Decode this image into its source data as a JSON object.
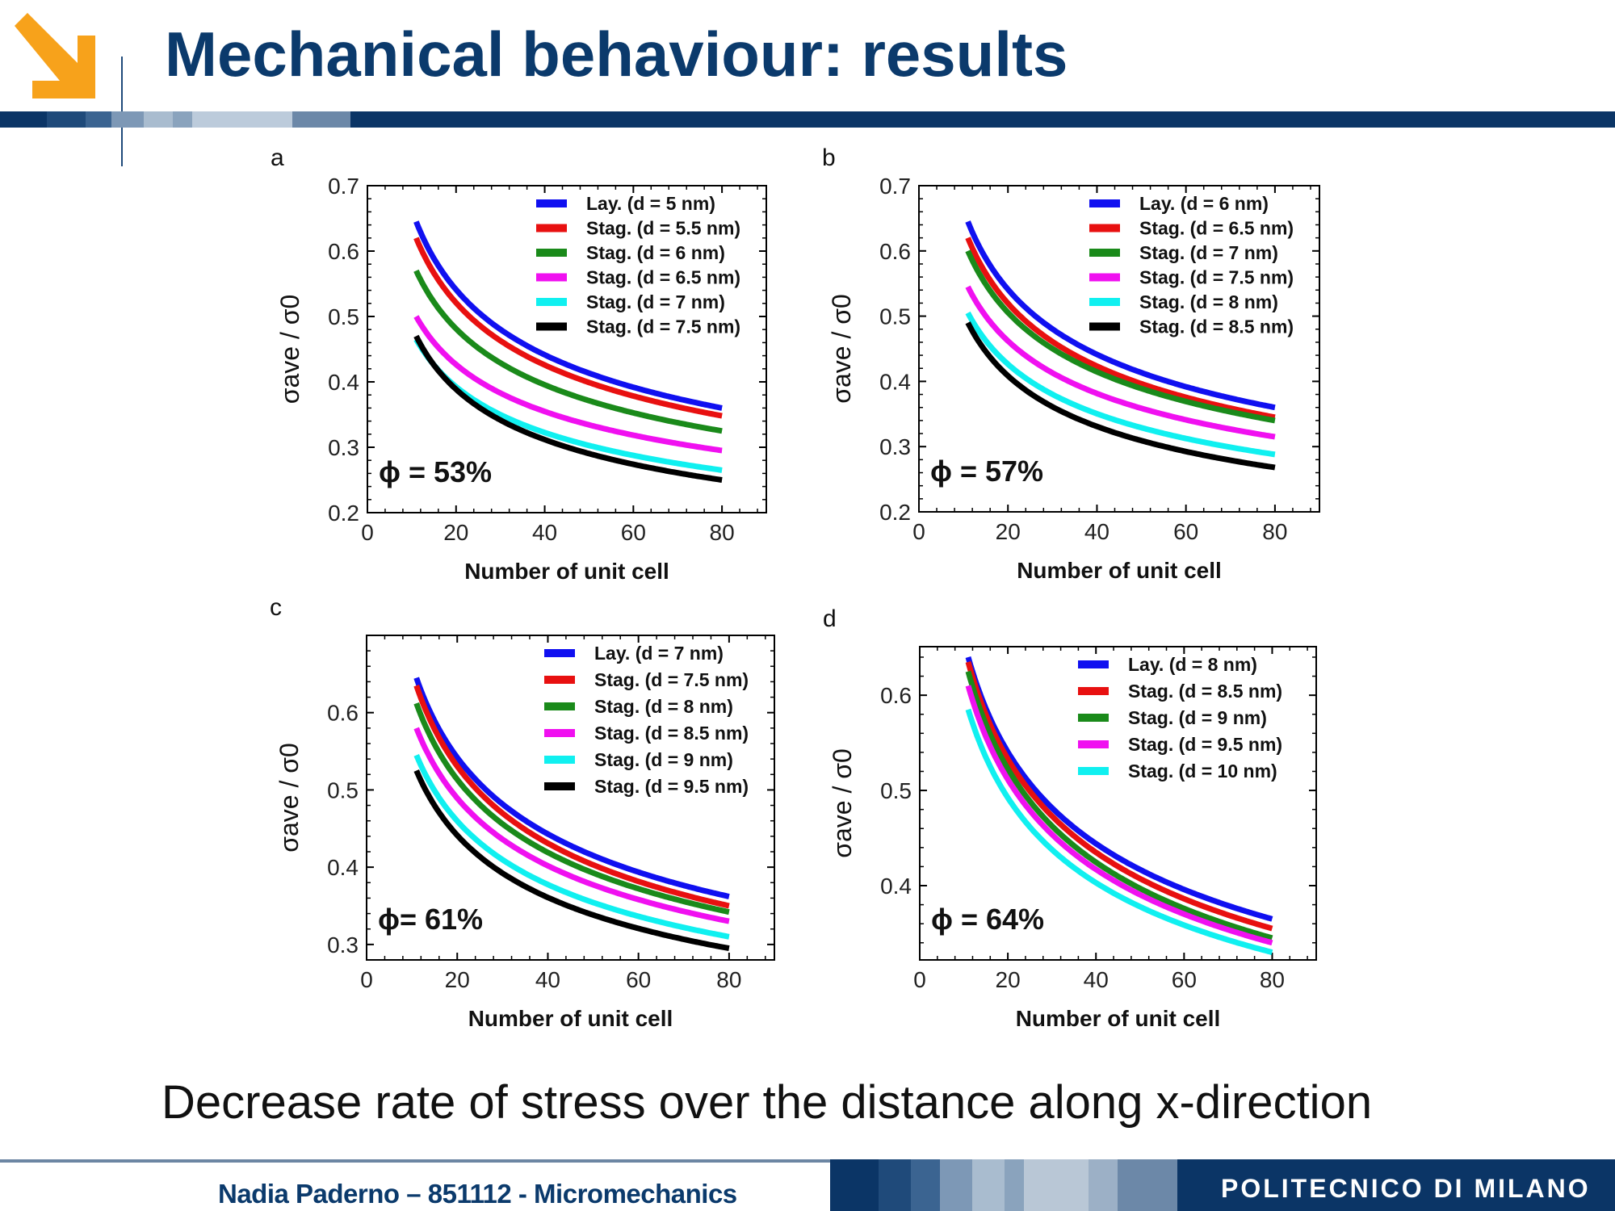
{
  "header": {
    "title": "Mechanical behaviour: results"
  },
  "subtitle": "Decrease rate of stress over the distance along x-direction",
  "footer": {
    "author": "Nadia Paderno – 851112 - Micromechanics",
    "institution": "POLITECNICO DI MILANO"
  },
  "colors": {
    "brand": "#0b3566",
    "title": "#0b3a6c",
    "logo": "#f7a21b"
  },
  "chart_data": [
    {
      "type": "line",
      "panel": "a",
      "annotation": "ϕ = 53%",
      "xlabel": "Number of unit cell",
      "ylabel": "σave / σ0",
      "xlim": [
        0,
        90
      ],
      "ylim": [
        0.2,
        0.7
      ],
      "xticks": [
        "0",
        "20",
        "40",
        "60",
        "80"
      ],
      "yticks": [
        "0.2",
        "0.3",
        "0.4",
        "0.5",
        "0.6",
        "0.7"
      ],
      "x_range": [
        11,
        80
      ],
      "series": [
        {
          "name": "Lay. (d = 5 nm)",
          "color": "#1010f0",
          "start": 0.645,
          "end": 0.36
        },
        {
          "name": "Stag. (d = 5.5 nm)",
          "color": "#e81010",
          "start": 0.62,
          "end": 0.348
        },
        {
          "name": "Stag. (d = 6 nm)",
          "color": "#1a8a1a",
          "start": 0.57,
          "end": 0.325
        },
        {
          "name": "Stag. (d = 6.5 nm)",
          "color": "#f010f0",
          "start": 0.5,
          "end": 0.295
        },
        {
          "name": "Stag. (d = 7 nm)",
          "color": "#10f0f0",
          "start": 0.465,
          "end": 0.265
        },
        {
          "name": "Stag. (d = 7.5 nm)",
          "color": "#000000",
          "start": 0.47,
          "end": 0.25
        }
      ]
    },
    {
      "type": "line",
      "panel": "b",
      "annotation": "ϕ = 57%",
      "xlabel": "Number of unit cell",
      "ylabel": "σave / σ0",
      "xlim": [
        0,
        90
      ],
      "ylim": [
        0.2,
        0.7
      ],
      "xticks": [
        "0",
        "20",
        "40",
        "60",
        "80"
      ],
      "yticks": [
        "0.2",
        "0.3",
        "0.4",
        "0.5",
        "0.6",
        "0.7"
      ],
      "x_range": [
        11,
        80
      ],
      "series": [
        {
          "name": "Lay. (d = 6 nm)",
          "color": "#1010f0",
          "start": 0.645,
          "end": 0.36
        },
        {
          "name": "Stag. (d = 6.5 nm)",
          "color": "#e81010",
          "start": 0.62,
          "end": 0.345
        },
        {
          "name": "Stag. (d = 7 nm)",
          "color": "#1a8a1a",
          "start": 0.6,
          "end": 0.34
        },
        {
          "name": "Stag. (d = 7.5 nm)",
          "color": "#f010f0",
          "start": 0.545,
          "end": 0.315
        },
        {
          "name": "Stag. (d = 8 nm)",
          "color": "#10f0f0",
          "start": 0.505,
          "end": 0.288
        },
        {
          "name": "Stag. (d = 8.5 nm)",
          "color": "#000000",
          "start": 0.49,
          "end": 0.268
        }
      ]
    },
    {
      "type": "line",
      "panel": "c",
      "annotation": "ϕ= 61%",
      "xlabel": "Number of unit cell",
      "ylabel": "σave / σ0",
      "xlim": [
        0,
        90
      ],
      "ylim": [
        0.28,
        0.7
      ],
      "xticks": [
        "0",
        "20",
        "40",
        "60",
        "80"
      ],
      "yticks": [
        "0.3",
        "0.4",
        "0.5",
        "0.6"
      ],
      "x_range": [
        11,
        80
      ],
      "series": [
        {
          "name": "Lay. (d = 7 nm)",
          "color": "#1010f0",
          "start": 0.645,
          "end": 0.362
        },
        {
          "name": "Stag. (d = 7.5 nm)",
          "color": "#e81010",
          "start": 0.635,
          "end": 0.35
        },
        {
          "name": "Stag. (d = 8 nm)",
          "color": "#1a8a1a",
          "start": 0.612,
          "end": 0.342
        },
        {
          "name": "Stag. (d = 8.5 nm)",
          "color": "#f010f0",
          "start": 0.58,
          "end": 0.33
        },
        {
          "name": "Stag. (d = 9 nm)",
          "color": "#10f0f0",
          "start": 0.545,
          "end": 0.31
        },
        {
          "name": "Stag. (d = 9.5 nm)",
          "color": "#000000",
          "start": 0.525,
          "end": 0.295
        }
      ]
    },
    {
      "type": "line",
      "panel": "d",
      "annotation": "ϕ = 64%",
      "xlabel": "Number of unit cell",
      "ylabel": "σave / σ0",
      "xlim": [
        0,
        90
      ],
      "ylim": [
        0.322,
        0.651
      ],
      "xticks": [
        "0",
        "20",
        "40",
        "60",
        "80"
      ],
      "yticks": [
        "0.4",
        "0.5",
        "0.6"
      ],
      "x_range": [
        11,
        80
      ],
      "series": [
        {
          "name": "Lay. (d = 8 nm)",
          "color": "#1010f0",
          "start": 0.64,
          "end": 0.365
        },
        {
          "name": "Stag. (d = 8.5 nm)",
          "color": "#e81010",
          "start": 0.635,
          "end": 0.355
        },
        {
          "name": "Stag. (d = 9 nm)",
          "color": "#1a8a1a",
          "start": 0.625,
          "end": 0.345
        },
        {
          "name": "Stag. (d = 9.5 nm)",
          "color": "#f010f0",
          "start": 0.61,
          "end": 0.34
        },
        {
          "name": "Stag. (d = 10 nm)",
          "color": "#10f0f0",
          "start": 0.585,
          "end": 0.33
        }
      ]
    }
  ]
}
